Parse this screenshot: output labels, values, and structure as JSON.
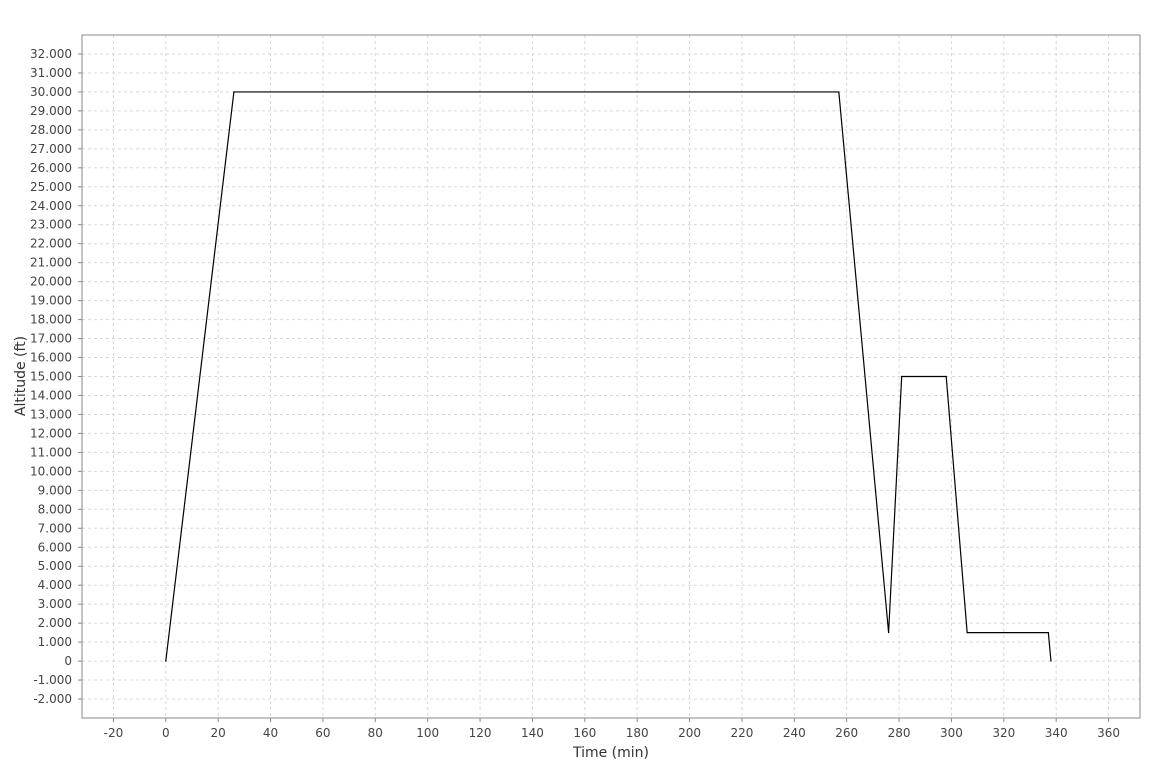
{
  "chart_data": {
    "type": "line",
    "title": "",
    "xlabel": "Time (min)",
    "ylabel": "Altitude (ft)",
    "xlim": [
      -32,
      372
    ],
    "ylim": [
      -3000,
      33000
    ],
    "x_ticks": [
      -20,
      0,
      20,
      40,
      60,
      80,
      100,
      120,
      140,
      160,
      180,
      200,
      220,
      240,
      260,
      280,
      300,
      320,
      340,
      360
    ],
    "x_tick_labels": [
      "-20",
      "0",
      "20",
      "40",
      "60",
      "80",
      "100",
      "120",
      "140",
      "160",
      "180",
      "200",
      "220",
      "240",
      "260",
      "280",
      "300",
      "320",
      "340",
      "360"
    ],
    "y_ticks": [
      -2000,
      -1000,
      0,
      1000,
      2000,
      3000,
      4000,
      5000,
      6000,
      7000,
      8000,
      9000,
      10000,
      11000,
      12000,
      13000,
      14000,
      15000,
      16000,
      17000,
      18000,
      19000,
      20000,
      21000,
      22000,
      23000,
      24000,
      25000,
      26000,
      27000,
      28000,
      29000,
      30000,
      31000,
      32000
    ],
    "y_tick_labels": [
      "-2.000",
      "-1.000",
      "0",
      "1.000",
      "2.000",
      "3.000",
      "4.000",
      "5.000",
      "6.000",
      "7.000",
      "8.000",
      "9.000",
      "10.000",
      "11.000",
      "12.000",
      "13.000",
      "14.000",
      "15.000",
      "16.000",
      "17.000",
      "18.000",
      "19.000",
      "20.000",
      "21.000",
      "22.000",
      "23.000",
      "24.000",
      "25.000",
      "26.000",
      "27.000",
      "28.000",
      "29.000",
      "30.000",
      "31.000",
      "32.000"
    ],
    "grid": true,
    "series": [
      {
        "color": "#000000",
        "x": [
          0,
          26,
          257,
          276,
          281,
          298,
          306,
          337,
          338
        ],
        "y": [
          0,
          30000,
          30000,
          1500,
          15000,
          15000,
          1500,
          1500,
          0
        ]
      }
    ]
  },
  "colors": {
    "background": "#ffffff",
    "plot_border": "#888888",
    "grid": "#d8d8d8",
    "line": "#000000"
  }
}
